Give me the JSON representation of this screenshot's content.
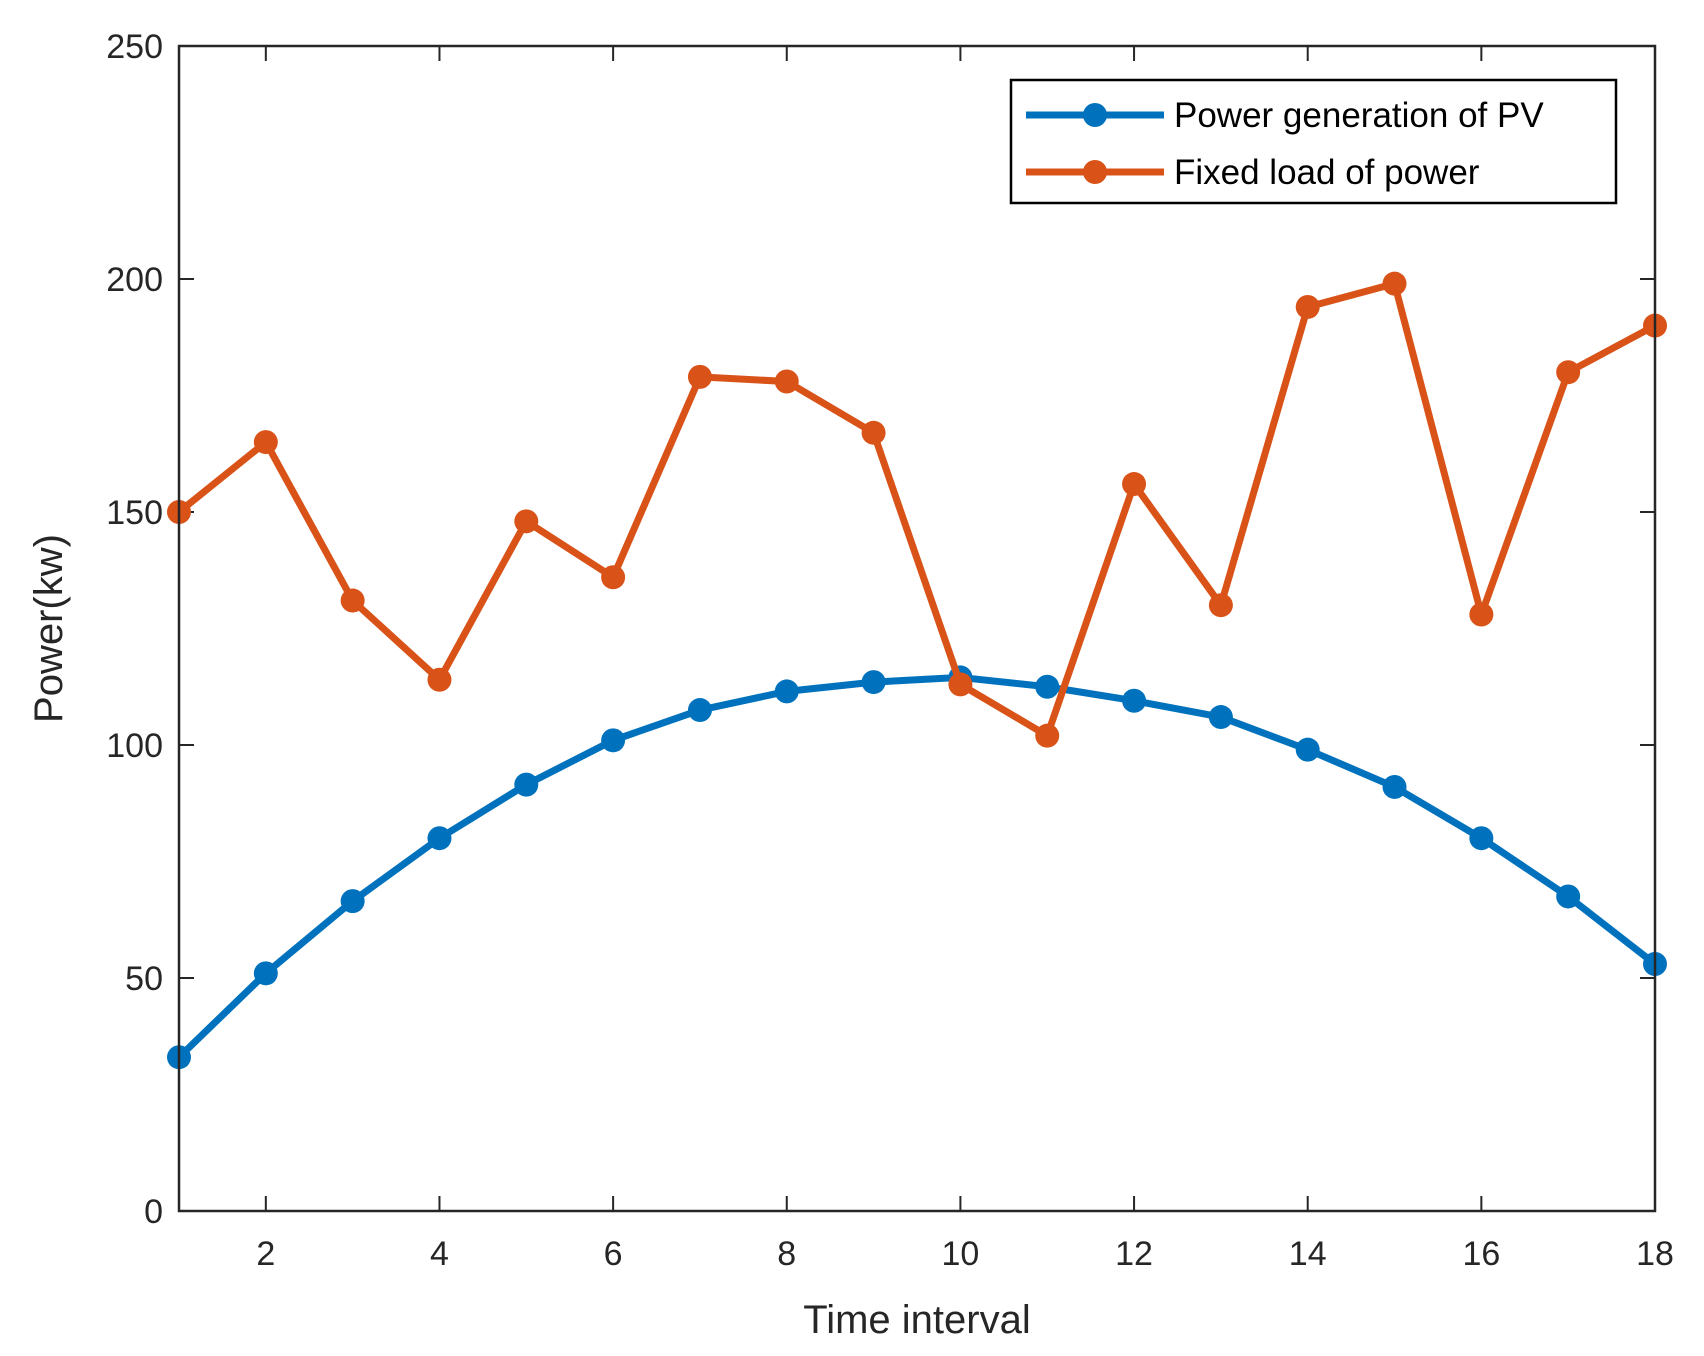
{
  "chart_data": {
    "type": "line",
    "title": "",
    "xlabel": "Time interval",
    "ylabel": "Power(kw)",
    "xlim": [
      1,
      18
    ],
    "ylim": [
      0,
      250
    ],
    "xticks": [
      2,
      4,
      6,
      8,
      10,
      12,
      14,
      16,
      18
    ],
    "yticks": [
      0,
      50,
      100,
      150,
      200,
      250
    ],
    "grid": false,
    "legend_position": "top-right",
    "x": [
      1,
      2,
      3,
      4,
      5,
      6,
      7,
      8,
      9,
      10,
      11,
      12,
      13,
      14,
      15,
      16,
      17,
      18
    ],
    "series": [
      {
        "name": "Power generation of PV",
        "color": "#0072BD",
        "values": [
          33,
          51,
          66.5,
          80,
          91.5,
          101,
          107.5,
          111.5,
          113.5,
          114.5,
          112.5,
          109.5,
          106,
          99,
          91,
          80,
          67.5,
          53
        ]
      },
      {
        "name": "Fixed load of power",
        "color": "#D95319",
        "values": [
          150,
          165,
          131,
          114,
          148,
          136,
          179,
          178,
          167,
          113,
          102,
          156,
          130,
          194,
          199,
          128,
          180,
          190
        ]
      }
    ]
  }
}
